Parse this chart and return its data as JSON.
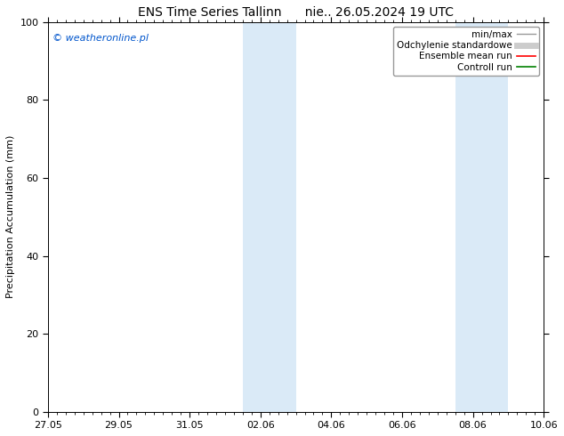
{
  "title": "ENS Time Series Tallinn      nie.. 26.05.2024 19 UTC",
  "ylabel": "Precipitation Accumulation (mm)",
  "ylim": [
    0,
    100
  ],
  "yticks": [
    0,
    20,
    40,
    60,
    80,
    100
  ],
  "x_tick_labels": [
    "27.05",
    "29.05",
    "31.05",
    "02.06",
    "04.06",
    "06.06",
    "08.06",
    "10.06"
  ],
  "x_tick_positions": [
    0,
    2,
    4,
    6,
    8,
    10,
    12,
    14
  ],
  "shaded_bands": [
    {
      "x_start": 5.5,
      "x_end": 7.0
    },
    {
      "x_start": 11.5,
      "x_end": 13.0
    }
  ],
  "shaded_color": "#daeaf7",
  "watermark_text": "© weatheronline.pl",
  "watermark_color": "#0055cc",
  "legend_entries": [
    {
      "label": "min/max",
      "color": "#999999",
      "linewidth": 1.0,
      "linestyle": "-"
    },
    {
      "label": "Odchylenie standardowe",
      "color": "#cccccc",
      "linewidth": 5,
      "linestyle": "-"
    },
    {
      "label": "Ensemble mean run",
      "color": "red",
      "linewidth": 1.2,
      "linestyle": "-"
    },
    {
      "label": "Controll run",
      "color": "green",
      "linewidth": 1.2,
      "linestyle": "-"
    }
  ],
  "bg_color": "#ffffff",
  "axes_color": "#000000",
  "figsize": [
    6.34,
    4.9
  ],
  "dpi": 100,
  "title_fontsize": 10,
  "label_fontsize": 8,
  "tick_fontsize": 8,
  "legend_fontsize": 7.5,
  "watermark_fontsize": 8
}
